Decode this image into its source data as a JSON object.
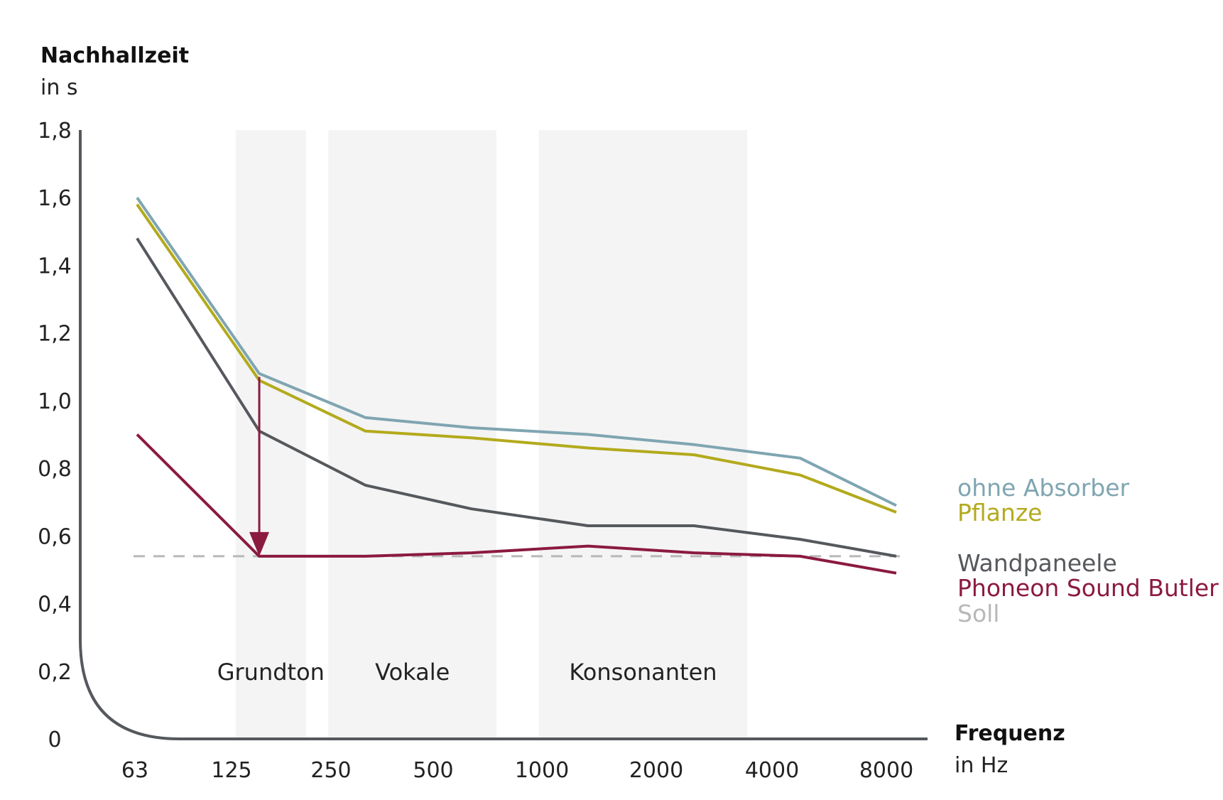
{
  "chart_data": {
    "type": "line",
    "ylabel": "Nachhallzeit",
    "ylabel_unit": "in s",
    "xlabel": "Frequenz",
    "xlabel_unit": "in Hz",
    "ylim": [
      0,
      1.8
    ],
    "yticks": [
      "0",
      "0,2",
      "0,4",
      "0,6",
      "0,8",
      "1,0",
      "1,2",
      "1,4",
      "1,6",
      "1,8"
    ],
    "categories": [
      "63",
      "125",
      "250",
      "500",
      "1000",
      "2000",
      "4000",
      "8000"
    ],
    "x": [
      63,
      140,
      280,
      560,
      1200,
      2400,
      4800,
      9000
    ],
    "grid": false,
    "bands": [
      {
        "label": "Grundton",
        "from": 120,
        "to": 190
      },
      {
        "label": "Vokale",
        "from": 220,
        "to": 660
      },
      {
        "label": "Konsonanten",
        "from": 870,
        "to": 3400
      }
    ],
    "series": [
      {
        "name": "ohne Absorber",
        "color": "#7fa5b1",
        "values": [
          1.6,
          1.08,
          0.95,
          0.92,
          0.9,
          0.87,
          0.83,
          0.69
        ]
      },
      {
        "name": "Pflanze",
        "color": "#b3aa1d",
        "values": [
          1.58,
          1.06,
          0.91,
          0.89,
          0.86,
          0.84,
          0.78,
          0.67
        ]
      },
      {
        "name": "Wandpaneele",
        "color": "#55585c",
        "values": [
          1.48,
          0.91,
          0.75,
          0.68,
          0.63,
          0.63,
          0.59,
          0.54
        ]
      },
      {
        "name": "Phoneon Sound  Butler",
        "color": "#8b1a3f",
        "values": [
          0.9,
          0.54,
          0.54,
          0.55,
          0.57,
          0.55,
          0.54,
          0.49
        ]
      }
    ],
    "target": {
      "name": "Soll",
      "color": "#b8b8b8",
      "value": 0.54
    },
    "annotation": {
      "type": "arrow",
      "x": 140,
      "from": 1.07,
      "to": 0.54,
      "color": "#8b1a3f"
    },
    "legend_position": "right"
  }
}
